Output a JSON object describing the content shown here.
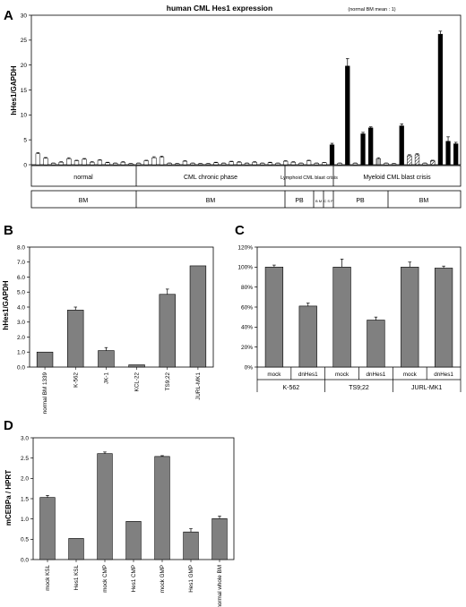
{
  "chart_data": [
    {
      "panel": "A",
      "type": "bar",
      "title": "human CML Hes1 expression",
      "subtitle": "(normal BM mean : 1)",
      "ylabel": "hHes1/GAPDH",
      "ylim": [
        0,
        30
      ],
      "yticks": [
        0,
        5,
        10,
        15,
        20,
        25,
        30
      ],
      "values": [
        2.2,
        1.3,
        0.3,
        0.5,
        1.2,
        0.8,
        1.1,
        0.5,
        0.9,
        0.4,
        0.3,
        0.5,
        0.2,
        0.3,
        0.8,
        1.4,
        1.5,
        0.3,
        0.2,
        0.7,
        0.3,
        0.2,
        0.2,
        0.4,
        0.3,
        0.6,
        0.5,
        0.3,
        0.5,
        0.3,
        0.4,
        0.3,
        0.7,
        0.5,
        0.3,
        0.8,
        0.3,
        0.4,
        4.0,
        0.3,
        19.8,
        0.3,
        6.2,
        7.4,
        1.2,
        0.3,
        0.2,
        7.8,
        1.8,
        2.0,
        0.3,
        0.8,
        26.2,
        4.7,
        4.2
      ],
      "errors": [
        0.2,
        0.15,
        0.05,
        0.1,
        0.2,
        0.1,
        0.15,
        0.1,
        0.1,
        0.1,
        0.05,
        0.1,
        0.05,
        0.05,
        0.1,
        0.2,
        0.2,
        0.05,
        0.05,
        0.1,
        0.05,
        0.05,
        0.05,
        0.1,
        0.05,
        0.1,
        0.1,
        0.05,
        0.1,
        0.05,
        0.1,
        0.05,
        0.1,
        0.1,
        0.05,
        0.1,
        0.05,
        0.05,
        0.3,
        0.05,
        1.5,
        0.05,
        0.3,
        0.2,
        0.2,
        0.05,
        0.05,
        0.4,
        0.2,
        0.2,
        0.05,
        0.1,
        0.6,
        0.9,
        0.3
      ],
      "styles": [
        "open",
        "open",
        "open",
        "open",
        "open",
        "open",
        "open",
        "open",
        "open",
        "open",
        "open",
        "open",
        "open",
        "open",
        "open",
        "open",
        "open",
        "open",
        "open",
        "open",
        "open",
        "open",
        "open",
        "open",
        "open",
        "open",
        "open",
        "open",
        "open",
        "open",
        "open",
        "open",
        "open",
        "open",
        "open",
        "open",
        "open",
        "open",
        "black",
        "open",
        "black",
        "open",
        "black",
        "black",
        "dots",
        "open",
        "open",
        "black",
        "hatch",
        "hatch",
        "open",
        "hatch",
        "black",
        "black",
        "black"
      ],
      "groups_row1": [
        "normal",
        "CML chronic phase",
        "Lymphoid CML blast crisis",
        "Myeloid CML blast crisis"
      ],
      "groups_row2": [
        "BM",
        "BM",
        "PB",
        "B M",
        "C S F",
        "PB",
        "BM"
      ]
    },
    {
      "panel": "B",
      "type": "bar",
      "ylabel": "hHes1/GAPDH",
      "ylim": [
        0,
        8
      ],
      "yticks": [
        "0.0",
        "1.0",
        "2.0",
        "3.0",
        "4.0",
        "5.0",
        "6.0",
        "7.0",
        "8.0"
      ],
      "categories": [
        "normal BM 1339",
        "K-562",
        "JK-1",
        "KCL-22",
        "TS9;22",
        "JURL-MK1"
      ],
      "values": [
        1.0,
        3.8,
        1.1,
        0.15,
        4.85,
        6.75
      ],
      "errors": [
        0.0,
        0.2,
        0.2,
        0.0,
        0.35,
        0.0
      ]
    },
    {
      "panel": "C",
      "type": "bar",
      "ylim": [
        0,
        120
      ],
      "yticks": [
        "0%",
        "20%",
        "40%",
        "60%",
        "80%",
        "100%",
        "120%"
      ],
      "categories": [
        "mock",
        "dnHes1",
        "mock",
        "dnHes1",
        "mock",
        "dnHes1"
      ],
      "groups": [
        "K-562",
        "TS9;22",
        "JURL-MK1"
      ],
      "values": [
        100,
        61,
        100,
        47,
        100,
        99
      ],
      "errors": [
        2,
        3,
        8,
        3,
        5,
        2
      ]
    },
    {
      "panel": "D",
      "type": "bar",
      "ylabel": "mCEBPa / HPRT",
      "ylim": [
        0,
        3
      ],
      "yticks": [
        "0.0",
        "0.5",
        "1.0",
        "1.5",
        "2.0",
        "2.5",
        "3.0"
      ],
      "categories": [
        "mock KSL",
        "Hes1 KSL",
        "mock CMP",
        "Hes1 CMP",
        "mock GMP",
        "Hes1 GMP",
        "normal whole BM"
      ],
      "values": [
        1.53,
        0.52,
        2.61,
        0.94,
        2.54,
        0.68,
        1.01
      ],
      "errors": [
        0.05,
        0.0,
        0.04,
        0.0,
        0.02,
        0.08,
        0.06
      ]
    }
  ]
}
